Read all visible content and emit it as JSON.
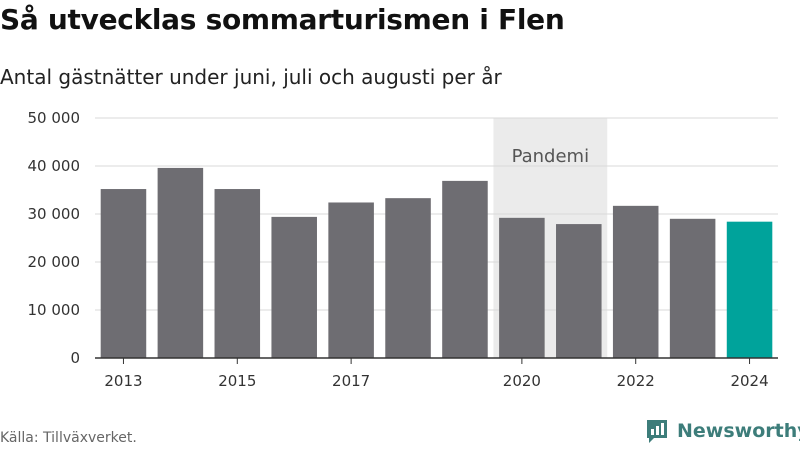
{
  "header": {
    "title": "Så utvecklas sommarturismen i Flen",
    "subtitle": "Antal gästnätter under juni, juli och augusti per år"
  },
  "footer": {
    "source": "Källa: Tillväxverket.",
    "brand": "Newsworthy"
  },
  "colors": {
    "bar": "#6e6d72",
    "highlight": "#00a39b",
    "band": "#ebebeb",
    "grid": "#d9d9d9",
    "brand": "#3d7d7a"
  },
  "chart_data": {
    "type": "bar",
    "title": "Så utvecklas sommarturismen i Flen",
    "subtitle": "Antal gästnätter under juni, juli och augusti per år",
    "xlabel": "",
    "ylabel": "",
    "categories": [
      "2013",
      "2014",
      "2015",
      "2016",
      "2017",
      "2018",
      "2019",
      "2020",
      "2021",
      "2022",
      "2023",
      "2024"
    ],
    "values": [
      35200,
      39600,
      35200,
      29400,
      32400,
      33300,
      36900,
      29200,
      27900,
      31700,
      29000,
      28400
    ],
    "highlight_category": "2024",
    "ylim": [
      0,
      50000
    ],
    "y_ticks": [
      0,
      10000,
      20000,
      30000,
      40000,
      50000
    ],
    "y_tick_labels": [
      "0",
      "10 000",
      "20 000",
      "30 000",
      "40 000",
      "50 000"
    ],
    "x_tick_labels": [
      "2013",
      "2015",
      "2017",
      "2020",
      "2022",
      "2024"
    ],
    "grid": true,
    "legend": "none",
    "annotation": {
      "label": "Pandemi",
      "from": "2020",
      "to": "2021"
    }
  }
}
